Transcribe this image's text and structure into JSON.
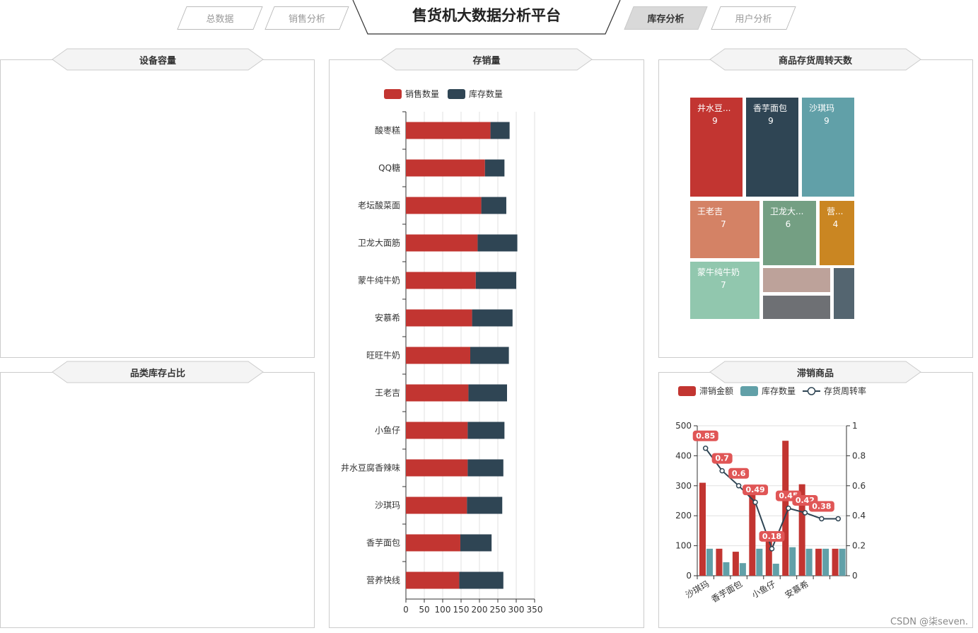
{
  "nav": {
    "title": "售货机大数据分析平台",
    "tabs": [
      {
        "label": "总数据",
        "active": false
      },
      {
        "label": "销售分析",
        "active": false
      },
      {
        "label": "库存分析",
        "active": true
      },
      {
        "label": "用户分析",
        "active": false
      }
    ]
  },
  "panels": {
    "capacity_title": "设备容量",
    "category_title": "品类库存占比",
    "stock_sales_title": "存销量",
    "turnover_title": "商品存货周转天数",
    "slow_title": "滞销商品"
  },
  "watermark": "CSDN @柒seven.",
  "colors": {
    "red": "#c23531",
    "navy": "#2f4554",
    "teal": "#61a0a8",
    "salmon": "#d48265",
    "green": "#749f83",
    "orange": "#ca8622",
    "mint": "#91c7ae",
    "pink": "#bda29a",
    "gray": "#6e7074",
    "slate": "#546570",
    "label_red": "#e05656"
  },
  "chart_data": [
    {
      "type": "bar",
      "orientation": "horizontal",
      "stacked": true,
      "categories": [
        "酸枣糕",
        "QQ糖",
        "老坛酸菜面",
        "卫龙大面筋",
        "蒙牛纯牛奶",
        "安慕希",
        "旺旺牛奶",
        "王老吉",
        "小鱼仔",
        "井水豆腐香辣味",
        "沙琪玛",
        "香芋面包",
        "营养快线"
      ],
      "series": [
        {
          "name": "销售数量",
          "values": [
            230,
            215,
            205,
            195,
            190,
            180,
            175,
            170,
            168,
            168,
            166,
            148,
            145
          ]
        },
        {
          "name": "库存数量",
          "values": [
            52,
            53,
            68,
            108,
            110,
            110,
            105,
            105,
            100,
            97,
            96,
            85,
            120
          ]
        }
      ],
      "xlim": [
        0,
        350
      ],
      "x_ticks": [
        "0",
        "50",
        "100",
        "150",
        "200",
        "250",
        "300",
        "350"
      ],
      "legend": "top-center"
    },
    {
      "type": "treemap",
      "items": [
        {
          "name": "井水豆...",
          "value": 9
        },
        {
          "name": "香芋面包",
          "value": 9
        },
        {
          "name": "沙琪玛",
          "value": 9
        },
        {
          "name": "王老吉",
          "value": 7
        },
        {
          "name": "卫龙大...",
          "value": 6
        },
        {
          "name": "营...",
          "value": 4
        },
        {
          "name": "蒙牛纯牛奶",
          "value": 7
        },
        {
          "name": "",
          "value": 2
        },
        {
          "name": "",
          "value": 1.5
        },
        {
          "name": "",
          "value": 1.5
        }
      ]
    },
    {
      "type": "bar",
      "categories": [
        "沙琪玛",
        "",
        "香芋面包",
        "",
        "小鱼仔",
        "",
        "安慕希",
        "",
        ""
      ],
      "series": [
        {
          "name": "滞销金额",
          "values": [
            310,
            90,
            80,
            270,
            130,
            450,
            305,
            90,
            90
          ]
        },
        {
          "name": "库存数量",
          "values": [
            90,
            45,
            42,
            90,
            40,
            95,
            90,
            90,
            90
          ]
        },
        {
          "name": "存货周转率",
          "type": "line",
          "axis": "right",
          "values": [
            0.85,
            0.7,
            0.6,
            0.49,
            0.18,
            0.45,
            0.42,
            0.38,
            0.38
          ]
        }
      ],
      "data_labels": [
        "0.85",
        "0.7",
        "0.6",
        "0.49",
        "0.18",
        "0.45",
        "0.42",
        "0.38"
      ],
      "ylim_left": [
        0,
        500
      ],
      "ylim_right": [
        0,
        1
      ],
      "y_ticks_left": [
        "0",
        "100",
        "200",
        "300",
        "400",
        "500"
      ],
      "y_ticks_right": [
        "0",
        "0.2",
        "0.4",
        "0.6",
        "0.8",
        "1"
      ],
      "legend": "top-left"
    }
  ]
}
